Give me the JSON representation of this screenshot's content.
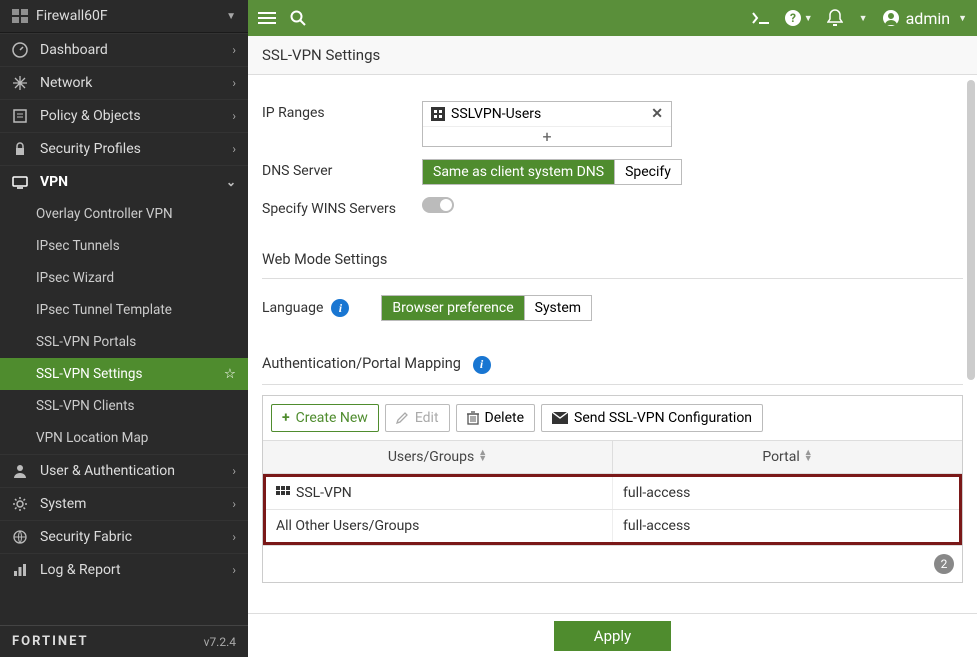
{
  "device_name": "Firewall60F",
  "brand": "FORTINET",
  "version": "v7.2.4",
  "user": "admin",
  "page_title": "SSL-VPN Settings",
  "nav": {
    "dashboard": "Dashboard",
    "network": "Network",
    "policy": "Policy & Objects",
    "security": "Security Profiles",
    "vpn": "VPN",
    "user_auth": "User & Authentication",
    "system": "System",
    "fabric": "Security Fabric",
    "log": "Log & Report"
  },
  "vpn_sub": {
    "overlay": "Overlay Controller VPN",
    "ipsec_tunnels": "IPsec Tunnels",
    "ipsec_wizard": "IPsec Wizard",
    "ipsec_template": "IPsec Tunnel Template",
    "ssl_portals": "SSL-VPN Portals",
    "ssl_settings": "SSL-VPN Settings",
    "ssl_clients": "SSL-VPN Clients",
    "vpn_location": "VPN Location Map"
  },
  "form": {
    "ip_ranges_label": "IP Ranges",
    "ip_range_value": "SSLVPN-Users",
    "dns_label": "DNS Server",
    "dns_option_same": "Same as client system DNS",
    "dns_option_specify": "Specify",
    "wins_label": "Specify WINS Servers"
  },
  "web_mode": {
    "header": "Web Mode Settings",
    "language_label": "Language",
    "lang_browser": "Browser preference",
    "lang_system": "System"
  },
  "auth": {
    "header": "Authentication/Portal Mapping",
    "create": "Create New",
    "edit": "Edit",
    "delete": "Delete",
    "send": "Send SSL-VPN Configuration",
    "col_users": "Users/Groups",
    "col_portal": "Portal",
    "rows": [
      {
        "users": "SSL-VPN",
        "portal": "full-access",
        "has_icon": true
      },
      {
        "users": "All Other Users/Groups",
        "portal": "full-access",
        "has_icon": false
      }
    ],
    "count": "2"
  },
  "apply": "Apply"
}
